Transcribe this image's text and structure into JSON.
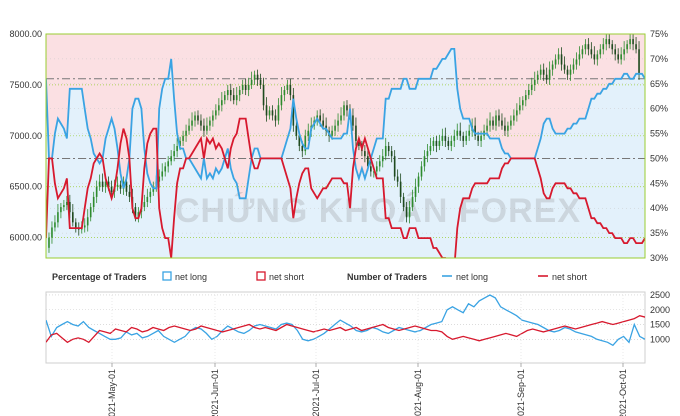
{
  "chart_data": [
    {
      "type": "line",
      "panel": "price",
      "ylim": [
        5800,
        8000
      ],
      "y_ticks": [
        "6000.00",
        "6500.00",
        "7000.00",
        "7500.00",
        "8000.00"
      ],
      "y_tick_values": [
        6000,
        6500,
        7000,
        7500,
        8000
      ],
      "y2lim": [
        30,
        75
      ],
      "y2_ticks": [
        "30%",
        "35%",
        "40%",
        "45%",
        "50%",
        "55%",
        "60%",
        "65%",
        "70%",
        "75%"
      ],
      "y2_tick_values": [
        30,
        35,
        40,
        45,
        50,
        55,
        60,
        65,
        70,
        75
      ],
      "reference_lines_percent": [
        50,
        66
      ],
      "series": [
        {
          "name": "net long",
          "color": "#3aa3e3",
          "values": [
            66,
            50,
            50,
            55,
            58,
            57,
            56,
            54,
            64,
            64,
            64,
            64,
            64,
            60,
            56,
            54,
            51,
            50,
            49,
            50,
            54,
            56,
            58,
            56,
            52,
            47,
            44,
            46,
            50,
            60,
            62,
            62,
            60,
            52,
            47,
            45,
            44,
            44,
            60,
            64,
            66,
            66,
            70,
            62,
            55,
            52,
            52,
            50,
            50,
            49,
            48,
            47,
            46,
            50,
            46,
            47,
            46,
            48,
            47,
            48,
            50,
            52,
            48,
            46,
            45,
            42,
            42,
            42,
            46,
            50,
            52,
            52,
            50,
            50,
            50,
            50,
            50,
            50,
            50,
            50,
            52,
            54,
            56,
            62,
            58,
            55,
            53,
            52,
            52,
            56,
            57,
            58,
            57,
            56,
            56,
            55,
            54,
            54,
            54,
            54,
            55,
            55,
            60,
            52,
            48,
            46,
            48,
            46,
            48,
            50,
            52,
            54,
            54,
            54,
            62,
            62,
            64,
            64,
            64,
            64,
            66,
            66,
            64,
            64,
            64,
            66,
            66,
            66,
            66,
            66,
            68,
            68,
            69,
            70,
            70,
            71,
            72,
            72,
            64,
            60,
            58,
            58,
            58,
            56,
            55,
            55,
            55,
            55,
            55,
            54,
            54,
            54,
            54,
            52,
            51,
            51,
            50,
            50,
            50,
            50,
            50,
            50,
            50,
            50,
            50,
            52,
            54,
            57,
            58,
            58,
            56,
            55,
            55,
            55,
            55,
            56,
            56,
            57,
            57,
            58,
            58,
            58,
            60,
            62,
            62,
            63,
            63,
            64,
            64,
            65,
            65,
            66,
            66,
            66,
            67,
            67,
            66,
            66,
            67,
            67,
            67,
            66
          ]
        },
        {
          "name": "net short",
          "color": "#d7192e",
          "values": [
            34,
            50,
            50,
            45,
            42,
            43,
            44,
            46,
            36,
            36,
            36,
            36,
            36,
            40,
            44,
            46,
            49,
            50,
            51,
            50,
            46,
            44,
            42,
            44,
            48,
            53,
            56,
            54,
            50,
            40,
            38,
            38,
            40,
            48,
            53,
            55,
            56,
            56,
            40,
            36,
            34,
            34,
            30,
            38,
            45,
            48,
            48,
            50,
            50,
            51,
            52,
            53,
            54,
            50,
            54,
            53,
            54,
            52,
            53,
            52,
            50,
            48,
            52,
            54,
            55,
            58,
            58,
            58,
            54,
            50,
            48,
            48,
            50,
            50,
            50,
            50,
            50,
            50,
            50,
            50,
            48,
            46,
            44,
            38,
            42,
            45,
            47,
            48,
            48,
            44,
            43,
            42,
            43,
            44,
            44,
            45,
            46,
            46,
            46,
            46,
            45,
            45,
            40,
            48,
            52,
            54,
            52,
            54,
            52,
            50,
            48,
            46,
            46,
            46,
            38,
            38,
            36,
            36,
            36,
            36,
            34,
            34,
            36,
            36,
            36,
            34,
            34,
            34,
            34,
            34,
            32,
            32,
            31,
            30,
            30,
            29,
            28,
            28,
            36,
            40,
            42,
            42,
            42,
            44,
            45,
            45,
            45,
            45,
            45,
            46,
            46,
            46,
            46,
            48,
            49,
            49,
            50,
            50,
            50,
            50,
            50,
            50,
            50,
            50,
            50,
            48,
            46,
            43,
            42,
            42,
            44,
            45,
            45,
            45,
            45,
            44,
            44,
            43,
            43,
            42,
            42,
            42,
            40,
            38,
            38,
            37,
            37,
            36,
            36,
            35,
            35,
            34,
            34,
            34,
            33,
            33,
            34,
            34,
            33,
            33,
            33,
            34
          ]
        },
        {
          "name": "price",
          "color": "#2e8b2e",
          "values": [
            5900,
            6000,
            6100,
            6150,
            6250,
            6300,
            6320,
            6350,
            6250,
            6150,
            6100,
            6080,
            6100,
            6120,
            6200,
            6300,
            6400,
            6500,
            6550,
            6500,
            6550,
            6500,
            6450,
            6500,
            6520,
            6480,
            6550,
            6450,
            6400,
            6300,
            6200,
            6250,
            6300,
            6350,
            6400,
            6450,
            6500,
            6550,
            6600,
            6650,
            6700,
            6750,
            6800,
            6850,
            6900,
            6950,
            7000,
            7050,
            7100,
            7150,
            7200,
            7150,
            7100,
            7050,
            7100,
            7150,
            7200,
            7250,
            7300,
            7350,
            7400,
            7450,
            7400,
            7350,
            7400,
            7450,
            7500,
            7450,
            7500,
            7550,
            7600,
            7550,
            7500,
            7300,
            7200,
            7250,
            7200,
            7150,
            7300,
            7400,
            7450,
            7500,
            7400,
            7100,
            7000,
            6900,
            6850,
            7000,
            7050,
            7100,
            7150,
            7200,
            7150,
            7100,
            7050,
            7000,
            7050,
            7100,
            7150,
            7200,
            7300,
            7250,
            7200,
            7100,
            6950,
            6900,
            6850,
            6800,
            6700,
            6650,
            6650,
            6700,
            6750,
            6800,
            6900,
            6850,
            6800,
            6600,
            6550,
            6400,
            6300,
            6200,
            6300,
            6400,
            6500,
            6600,
            6700,
            6800,
            6850,
            6900,
            6950,
            6900,
            6950,
            7000,
            6950,
            6900,
            6950,
            7000,
            7050,
            7000,
            6950,
            7000,
            7050,
            7100,
            7000,
            6950,
            7000,
            7050,
            7100,
            7150,
            7100,
            7200,
            7150,
            7100,
            7050,
            7100,
            7150,
            7200,
            7250,
            7300,
            7350,
            7400,
            7450,
            7500,
            7550,
            7600,
            7650,
            7600,
            7550,
            7650,
            7700,
            7750,
            7800,
            7700,
            7650,
            7600,
            7650,
            7700,
            7750,
            7800,
            7850,
            7900,
            7850,
            7800,
            7750,
            7800,
            7850,
            7900,
            7950,
            7900,
            7850,
            7800,
            7750,
            7800,
            7850,
            7900,
            7950,
            7900,
            7850,
            7600
          ]
        }
      ]
    },
    {
      "type": "line",
      "panel": "traders",
      "ylim": [
        200,
        2600
      ],
      "y_ticks": [
        "1000",
        "1500",
        "2000",
        "2500"
      ],
      "y_tick_values": [
        1000,
        1500,
        2000,
        2500
      ],
      "x_ticks": [
        "2021-May-01",
        "2021-Jun-01",
        "2021-Jul-01",
        "2021-Aug-01",
        "2021-Sep-01",
        "2021-Oct-01"
      ],
      "series": [
        {
          "name": "net long",
          "color": "#3aa3e3",
          "values": [
            1650,
            1100,
            1400,
            1500,
            1600,
            1500,
            1450,
            1600,
            1400,
            1300,
            1200,
            1100,
            1000,
            1000,
            1050,
            1250,
            1150,
            1200,
            1050,
            1100,
            1200,
            1300,
            1100,
            1000,
            900,
            1000,
            1100,
            1300,
            1400,
            1350,
            1200,
            1000,
            1100,
            1300,
            1450,
            1350,
            1250,
            1200,
            1300,
            1450,
            1500,
            1450,
            1400,
            1350,
            1500,
            1550,
            1500,
            1300,
            1000,
            950,
            1000,
            1100,
            1200,
            1350,
            1500,
            1650,
            1550,
            1450,
            1300,
            1250,
            1300,
            1400,
            1350,
            1250,
            1200,
            1300,
            1400,
            1350,
            1300,
            1250,
            1300,
            1400,
            1500,
            1550,
            1600,
            2000,
            2100,
            2000,
            1900,
            2200,
            2100,
            2300,
            2400,
            2500,
            2400,
            2100,
            2000,
            1900,
            1800,
            1650,
            1600,
            1550,
            1500,
            1400,
            1300,
            1250,
            1300,
            1400,
            1350,
            1250,
            1200,
            1150,
            1100,
            1000,
            950,
            900,
            800,
            1000,
            1100,
            900,
            1500,
            1100,
            1000
          ]
        },
        {
          "name": "net short",
          "color": "#d7192e",
          "values": [
            900,
            1150,
            1200,
            1050,
            900,
            1000,
            1050,
            1000,
            900,
            1100,
            1300,
            1250,
            1200,
            1350,
            1300,
            1250,
            1400,
            1350,
            1250,
            1300,
            1400,
            1350,
            1300,
            1400,
            1450,
            1400,
            1350,
            1300,
            1350,
            1450,
            1400,
            1350,
            1300,
            1250,
            1300,
            1350,
            1400,
            1450,
            1500,
            1400,
            1350,
            1400,
            1350,
            1300,
            1400,
            1500,
            1450,
            1400,
            1350,
            1300,
            1250,
            1300,
            1350,
            1300,
            1350,
            1400,
            1300,
            1350,
            1400,
            1300,
            1350,
            1400,
            1450,
            1500,
            1400,
            1350,
            1300,
            1350,
            1400,
            1450,
            1400,
            1350,
            1300,
            1300,
            1250,
            1100,
            1000,
            1050,
            1100,
            1050,
            1000,
            950,
            1000,
            1050,
            1100,
            1150,
            1200,
            1150,
            1100,
            1200,
            1300,
            1350,
            1300,
            1250,
            1300,
            1350,
            1400,
            1450,
            1400,
            1350,
            1400,
            1450,
            1500,
            1550,
            1600,
            1550,
            1500,
            1550,
            1600,
            1650,
            1700,
            1800,
            1750,
            1600
          ]
        }
      ]
    }
  ],
  "legend": {
    "percentage_title": "Percentage of Traders",
    "number_title": "Number of Traders",
    "net_long": "net long",
    "net_short": "net short"
  },
  "watermark": "CHỨNG KHOÁN FOREX",
  "colors": {
    "long": "#3aa3e3",
    "short": "#d7192e",
    "price": "#2e8b2e",
    "long_fill": "#e3f1fb",
    "short_fill": "#fbe0e3"
  }
}
